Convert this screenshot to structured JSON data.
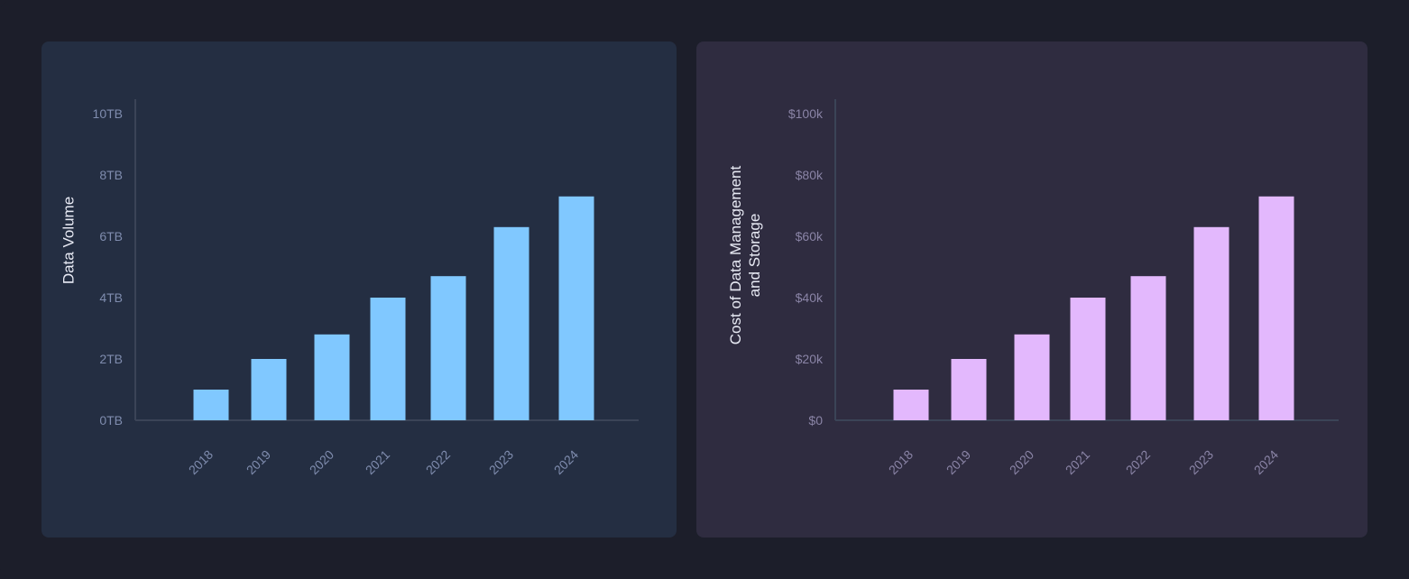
{
  "colors": {
    "left_panel_bg": "#242e42",
    "right_panel_bg": "#2f2c40",
    "left_bar": "#80c8ff",
    "right_bar": "#e3b8fd",
    "axis_line": "#3b4457",
    "tick_text_left": "#7f8cae",
    "tick_text_right": "#8a84a6"
  },
  "chart_data": [
    {
      "type": "bar",
      "categories": [
        "2018",
        "2019",
        "2020",
        "2021",
        "2022",
        "2023",
        "2024"
      ],
      "values": [
        1,
        2,
        2.8,
        4,
        4.7,
        6.3,
        7.3
      ],
      "ylabel": "Data Volume",
      "ylim": [
        0,
        10
      ],
      "yticks": [
        "0TB",
        "2TB",
        "4TB",
        "6TB",
        "8TB",
        "10TB"
      ],
      "grid": false,
      "legend": "none"
    },
    {
      "type": "bar",
      "categories": [
        "2018",
        "2019",
        "2020",
        "2021",
        "2022",
        "2023",
        "2024"
      ],
      "values": [
        10000,
        20000,
        28000,
        40000,
        47000,
        63000,
        73000
      ],
      "ylabel_lines": [
        "Cost of Data Management",
        "and Storage"
      ],
      "ylim": [
        0,
        100000
      ],
      "yticks": [
        "$0",
        "$20k",
        "$40k",
        "$60k",
        "$80k",
        "$100k"
      ],
      "grid": false,
      "legend": "none"
    }
  ]
}
